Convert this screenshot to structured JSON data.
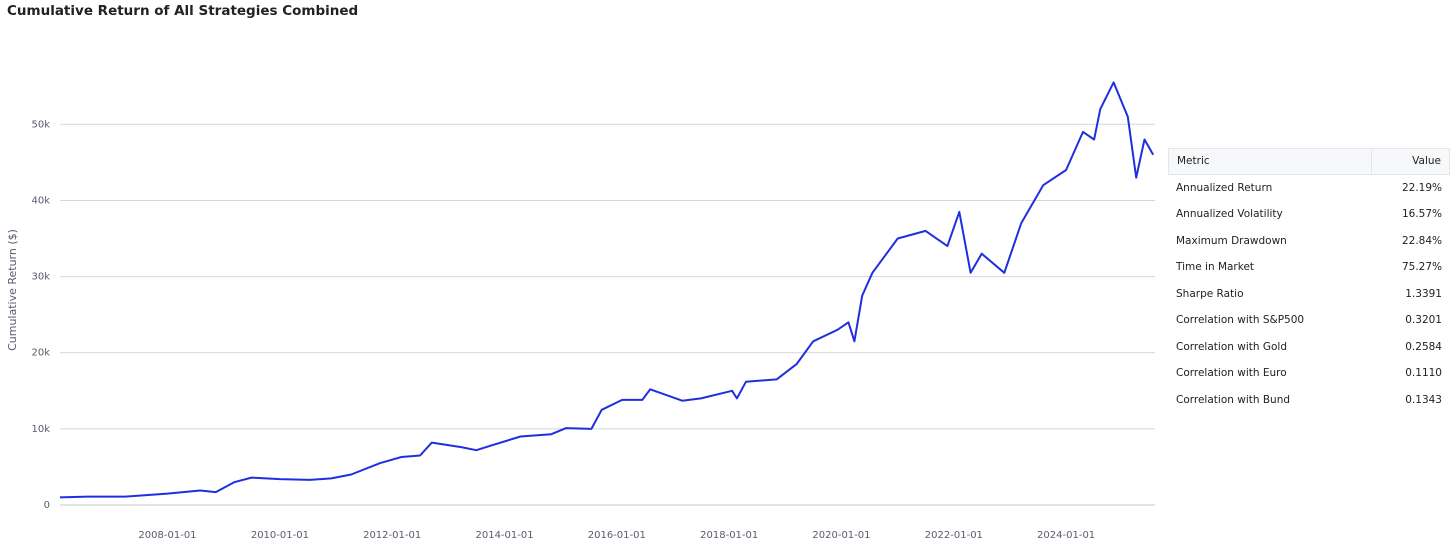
{
  "chart_data": {
    "type": "line",
    "title": "Cumulative Return of All Strategies Combined",
    "y_label": "Cumulative Return ($)",
    "x": [
      "2006-02-01",
      "2006-08-01",
      "2007-04-01",
      "2008-01-01",
      "2008-08-01",
      "2008-11-10",
      "2009-03-10",
      "2009-07-01",
      "2010-01-01",
      "2010-07-15",
      "2010-12-01",
      "2011-04-10",
      "2011-10-15",
      "2012-03-01",
      "2012-07-01",
      "2012-09-15",
      "2013-03-25",
      "2013-07-01",
      "2013-10-05",
      "2014-04-15",
      "2014-11-01",
      "2015-02-05",
      "2015-07-20",
      "2015-09-25",
      "2016-02-05",
      "2016-06-15",
      "2016-08-05",
      "2017-03-01",
      "2017-07-01",
      "2018-01-20",
      "2018-02-20",
      "2018-04-20",
      "2018-11-05",
      "2019-03-15",
      "2019-07-01",
      "2019-12-05",
      "2020-02-15",
      "2020-03-25",
      "2020-05-15",
      "2020-07-20",
      "2021-01-01",
      "2021-07-01",
      "2021-11-20",
      "2022-02-05",
      "2022-04-20",
      "2022-07-01",
      "2022-11-25",
      "2023-03-15",
      "2023-08-05",
      "2024-01-01",
      "2024-04-20",
      "2024-07-01",
      "2024-08-10",
      "2024-11-05",
      "2025-02-05",
      "2025-04-01",
      "2025-05-25",
      "2025-07-20"
    ],
    "values": [
      1000,
      1100,
      1100,
      1500,
      1900,
      1700,
      3000,
      3600,
      3400,
      3300,
      3500,
      4000,
      5500,
      6300,
      6500,
      8200,
      7600,
      7200,
      7800,
      9000,
      9300,
      10100,
      10000,
      12500,
      13800,
      13800,
      15200,
      13700,
      14000,
      15000,
      14000,
      16200,
      16500,
      18500,
      21500,
      23000,
      24000,
      21500,
      27500,
      30500,
      35000,
      36000,
      34000,
      38500,
      30500,
      33000,
      30500,
      37000,
      42000,
      44000,
      49000,
      48000,
      52000,
      55500,
      51000,
      43000,
      48000,
      46000
    ],
    "color": "#1f2fe0",
    "xlim": [
      "2006-02-01",
      "2025-08-01"
    ],
    "xticks": [
      "2008-01-01",
      "2010-01-01",
      "2012-01-01",
      "2014-01-01",
      "2016-01-01",
      "2018-01-01",
      "2020-01-01",
      "2022-01-01",
      "2024-01-01"
    ],
    "ylim": [
      0,
      57000
    ],
    "yticks": [
      0,
      {
        "value": 10000,
        "label": "10k"
      },
      {
        "value": 20000,
        "label": "20k"
      },
      {
        "value": 30000,
        "label": "30k"
      },
      {
        "value": 40000,
        "label": "40k"
      },
      {
        "value": 50000,
        "label": "50k"
      }
    ],
    "grid": true
  },
  "table": {
    "header": [
      "Metric",
      "Value"
    ],
    "rows": [
      [
        "Annualized Return",
        "22.19%"
      ],
      [
        "Annualized Volatility",
        "16.57%"
      ],
      [
        "Maximum Drawdown",
        "22.84%"
      ],
      [
        "Time in Market",
        "75.27%"
      ],
      [
        "Sharpe Ratio",
        "1.3391"
      ],
      [
        "Correlation with S&P500",
        "0.3201"
      ],
      [
        "Correlation with Gold",
        "0.2584"
      ],
      [
        "Correlation with Euro",
        "0.1110"
      ],
      [
        "Correlation with Bund",
        "0.1343"
      ]
    ]
  }
}
